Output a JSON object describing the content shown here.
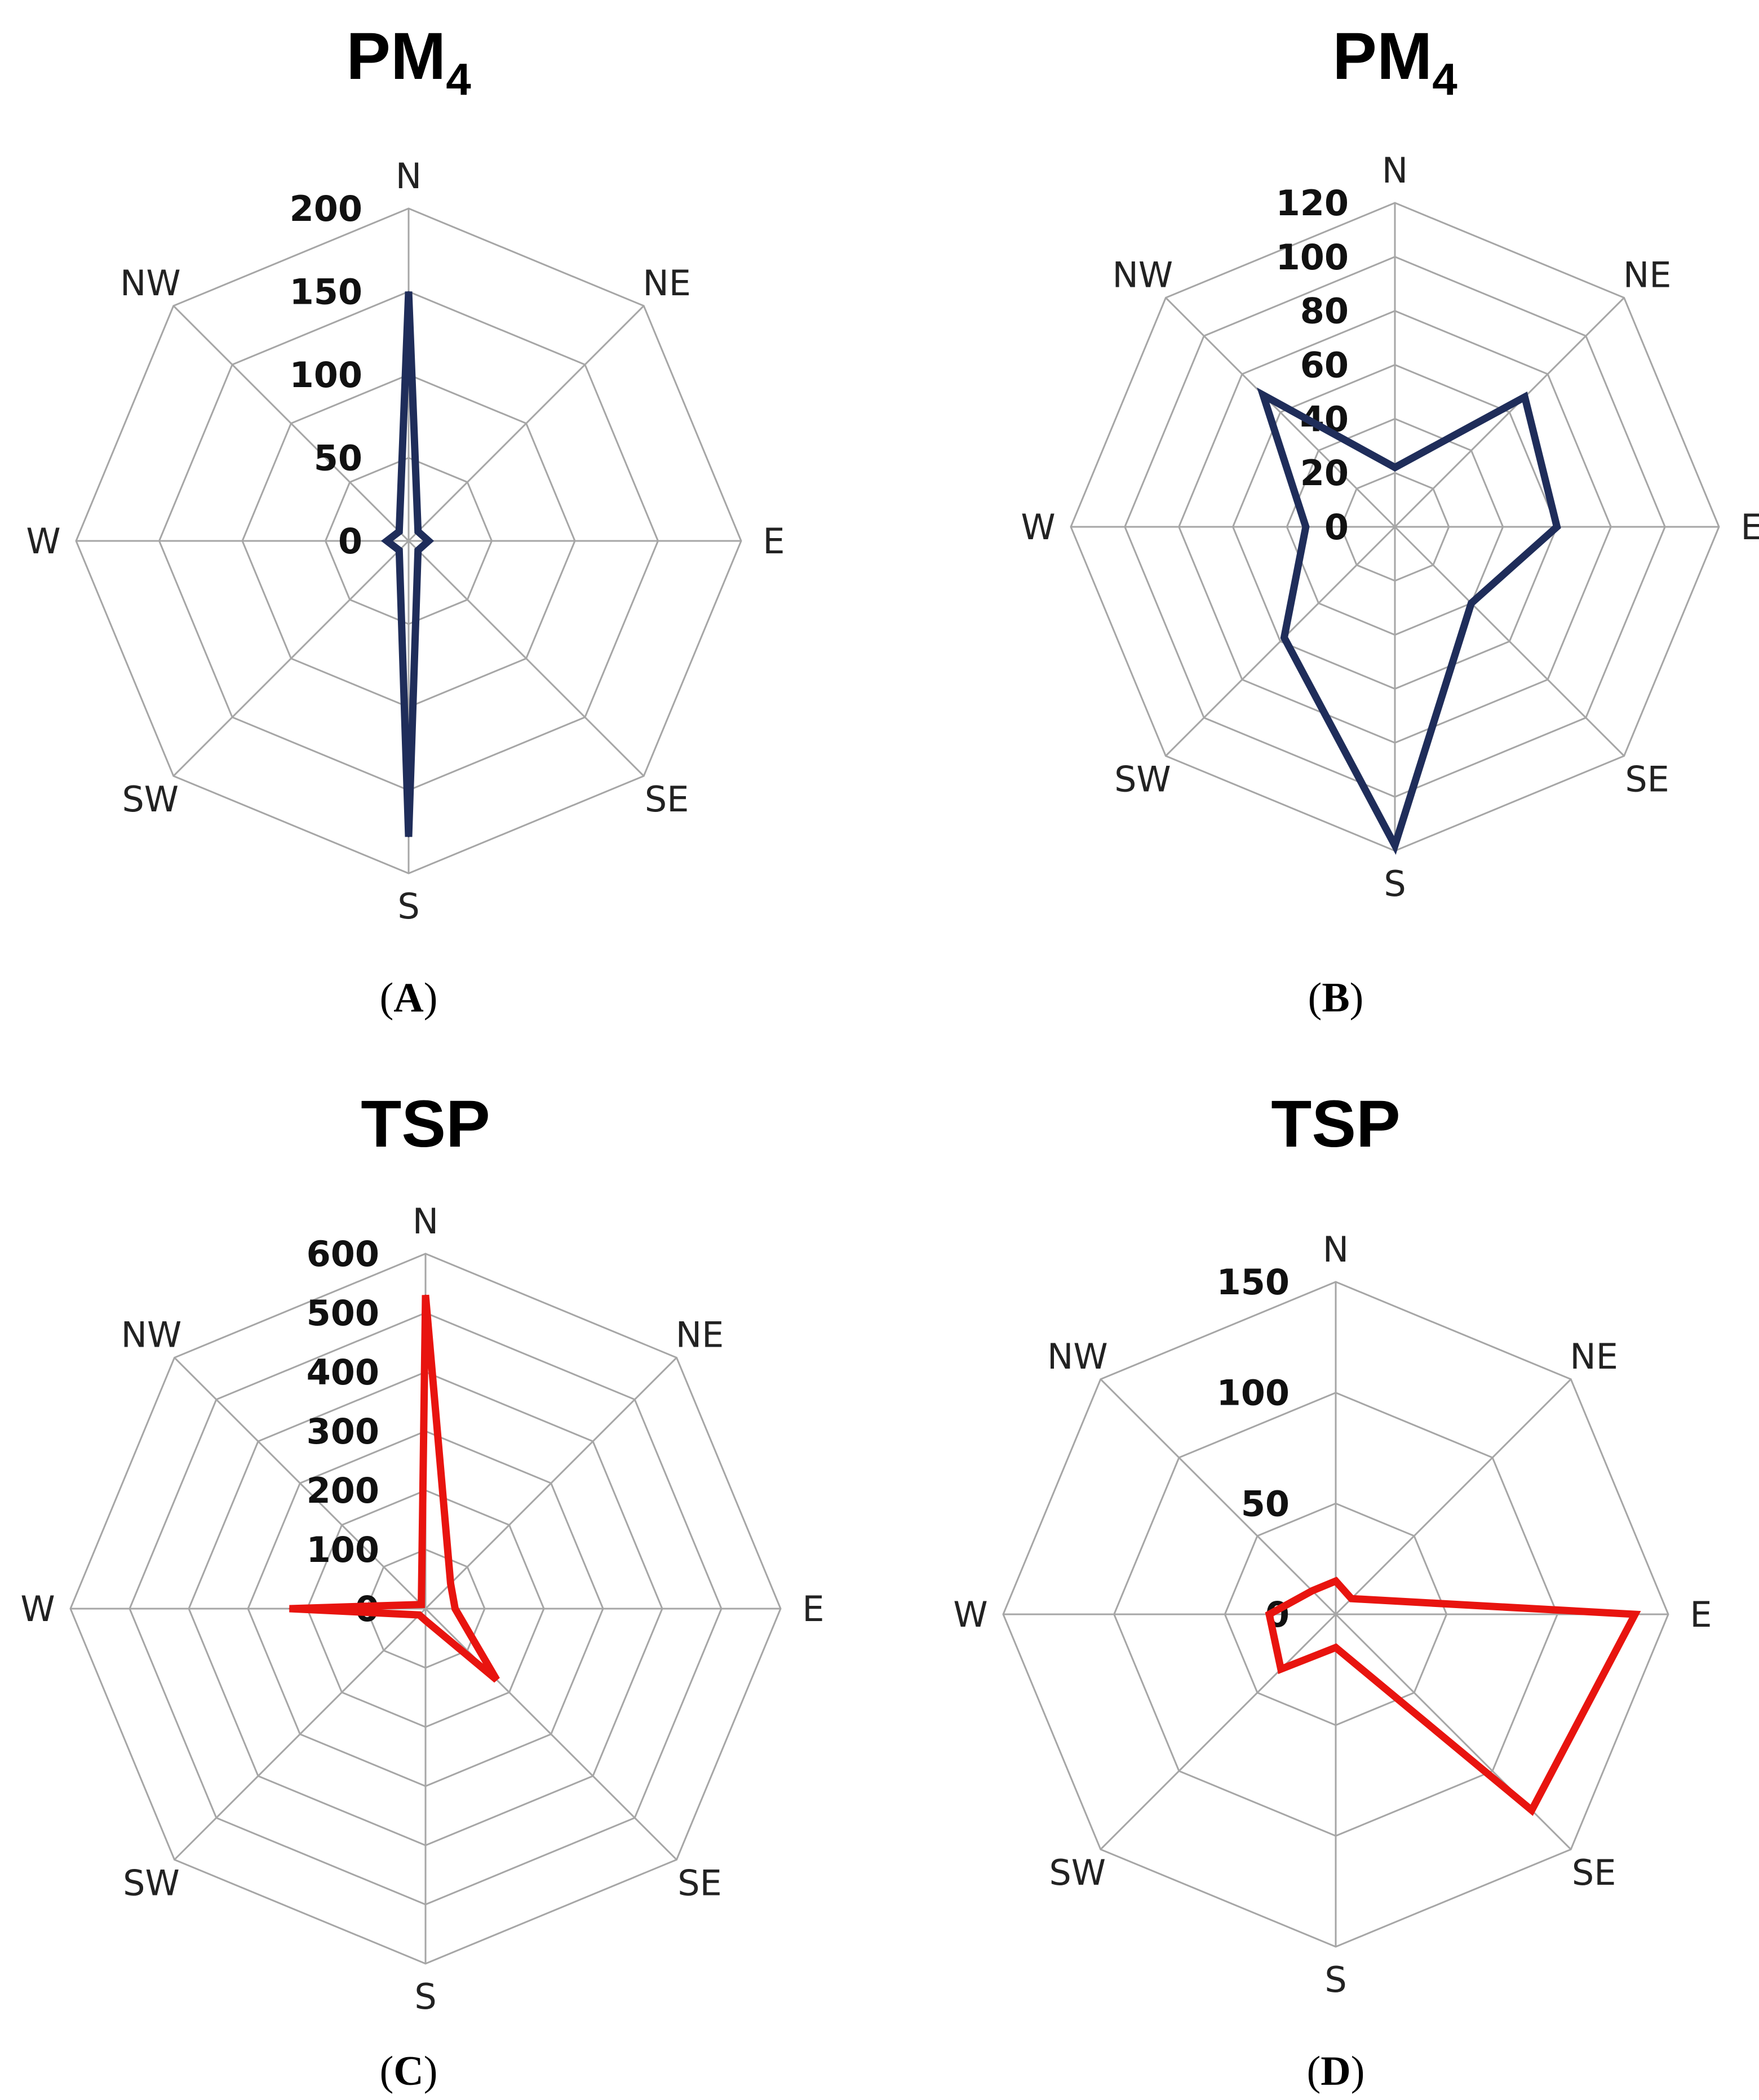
{
  "chart_data": [
    {
      "id": "A",
      "type": "radar",
      "title": "PM",
      "title_subscript": "4",
      "panel_label": "A",
      "axes": [
        "N",
        "NE",
        "E",
        "SE",
        "S",
        "SW",
        "W",
        "NW"
      ],
      "ticks": [
        "0",
        "50",
        "100",
        "150",
        "200"
      ],
      "rmax": 200,
      "rings": 4,
      "color": "#1f2d5a",
      "series": [
        {
          "name": "PM4",
          "values": [
            150,
            8,
            12,
            8,
            178,
            8,
            13,
            8
          ]
        }
      ]
    },
    {
      "id": "B",
      "type": "radar",
      "title": "PM",
      "title_subscript": "4",
      "panel_label": "B",
      "axes": [
        "N",
        "NE",
        "E",
        "SE",
        "S",
        "SW",
        "W",
        "NW"
      ],
      "ticks": [
        "0",
        "20",
        "40",
        "60",
        "80",
        "100",
        "120"
      ],
      "rmax": 120,
      "rings": 6,
      "color": "#1f2d5a",
      "series": [
        {
          "name": "PM4",
          "values": [
            22,
            68,
            60,
            40,
            118,
            58,
            33,
            69
          ]
        }
      ]
    },
    {
      "id": "C",
      "type": "radar",
      "title": "TSP",
      "title_subscript": "",
      "panel_label": "C",
      "axes": [
        "N",
        "NE",
        "E",
        "SE",
        "S",
        "SW",
        "W",
        "NW"
      ],
      "ticks": [
        "0",
        "100",
        "200",
        "300",
        "400",
        "500",
        "600"
      ],
      "rmax": 600,
      "rings": 6,
      "color": "#e8140f",
      "series": [
        {
          "name": "TSP",
          "values": [
            530,
            60,
            50,
            170,
            20,
            15,
            230,
            10
          ]
        }
      ]
    },
    {
      "id": "D",
      "type": "radar",
      "title": "TSP",
      "title_subscript": "",
      "panel_label": "D",
      "axes": [
        "N",
        "NE",
        "E",
        "SE",
        "S",
        "SW",
        "W",
        "NW"
      ],
      "ticks": [
        "0",
        "50",
        "100",
        "150"
      ],
      "rmax": 150,
      "rings": 3,
      "color": "#e8140f",
      "series": [
        {
          "name": "TSP",
          "values": [
            15,
            10,
            135,
            125,
            15,
            35,
            30,
            15
          ]
        }
      ]
    }
  ]
}
